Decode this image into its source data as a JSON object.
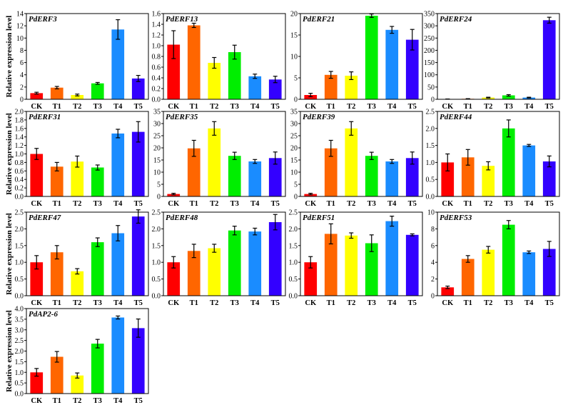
{
  "figure": {
    "ylabel": "Relative expression level",
    "categories": [
      "CK",
      "T1",
      "T2",
      "T3",
      "T4",
      "T5"
    ],
    "bar_colors": [
      "#ff0000",
      "#ff6600",
      "#ffff00",
      "#00ee00",
      "#1a8cff",
      "#3300ff"
    ]
  },
  "chart_data": [
    {
      "type": "bar",
      "title": "PdERF3",
      "categories": [
        "CK",
        "T1",
        "T2",
        "T3",
        "T4",
        "T5"
      ],
      "values": [
        1.0,
        1.9,
        0.7,
        2.6,
        11.4,
        3.4
      ],
      "errors": [
        0.15,
        0.2,
        0.15,
        0.15,
        1.6,
        0.5
      ],
      "ylim": [
        0,
        14
      ],
      "ticks": [
        0,
        2,
        4,
        6,
        8,
        10,
        12,
        14
      ],
      "tick_labels": [
        "0",
        "2",
        "4",
        "6",
        "8",
        "10",
        "12",
        "14"
      ],
      "ylabel": "Relative expression level"
    },
    {
      "type": "bar",
      "title": "PdERF13",
      "categories": [
        "CK",
        "T1",
        "T2",
        "T3",
        "T4",
        "T5"
      ],
      "values": [
        1.02,
        1.38,
        0.68,
        0.88,
        0.43,
        0.37
      ],
      "errors": [
        0.26,
        0.04,
        0.1,
        0.13,
        0.04,
        0.06
      ],
      "ylim": [
        0,
        1.6
      ],
      "ticks": [
        0,
        0.2,
        0.4,
        0.6,
        0.8,
        1.0,
        1.2,
        1.4,
        1.6
      ],
      "tick_labels": [
        "0.0",
        "0.2",
        "0.4",
        "0.6",
        "0.8",
        "1.0",
        "1.2",
        "1.4",
        "1.6"
      ],
      "ylabel": ""
    },
    {
      "type": "bar",
      "title": "PdERF21",
      "categories": [
        "CK",
        "T1",
        "T2",
        "T3",
        "T4",
        "T5"
      ],
      "values": [
        1.0,
        5.7,
        5.5,
        19.5,
        16.2,
        13.9
      ],
      "errors": [
        0.4,
        0.8,
        0.9,
        0.4,
        0.8,
        2.4
      ],
      "ylim": [
        0,
        20
      ],
      "ticks": [
        0,
        5,
        10,
        15,
        20
      ],
      "tick_labels": [
        "0",
        "5",
        "10",
        "15",
        "20"
      ],
      "ylabel": ""
    },
    {
      "type": "bar",
      "title": "PdERF24",
      "categories": [
        "CK",
        "T1",
        "T2",
        "T3",
        "T4",
        "T5"
      ],
      "values": [
        1,
        2,
        7,
        16,
        7,
        323
      ],
      "errors": [
        0.3,
        0.5,
        1.5,
        3,
        1.5,
        12
      ],
      "ylim": [
        0,
        350
      ],
      "ticks": [
        0,
        50,
        100,
        150,
        200,
        250,
        300,
        350
      ],
      "tick_labels": [
        "0",
        "50",
        "100",
        "150",
        "200",
        "250",
        "300",
        "350"
      ],
      "ylabel": ""
    },
    {
      "type": "bar",
      "title": "PdERF31",
      "categories": [
        "CK",
        "T1",
        "T2",
        "T3",
        "T4",
        "T5"
      ],
      "values": [
        1.0,
        0.7,
        0.82,
        0.68,
        1.48,
        1.52
      ],
      "errors": [
        0.13,
        0.1,
        0.13,
        0.06,
        0.1,
        0.24
      ],
      "ylim": [
        0,
        2.0
      ],
      "ticks": [
        0,
        0.2,
        0.4,
        0.6,
        0.8,
        1.0,
        1.2,
        1.4,
        1.6,
        1.8,
        2.0
      ],
      "tick_labels": [
        "0.0",
        "0.2",
        "0.4",
        "0.6",
        "0.8",
        "1.0",
        "1.2",
        "1.4",
        "1.6",
        "1.8",
        "2.0"
      ],
      "ylabel": "Relative expression level"
    },
    {
      "type": "bar",
      "title": "PdERF35",
      "categories": [
        "CK",
        "T1",
        "T2",
        "T3",
        "T4",
        "T5"
      ],
      "values": [
        1.0,
        19.8,
        28.0,
        16.7,
        14.4,
        15.8
      ],
      "errors": [
        0.3,
        3.3,
        2.8,
        1.5,
        0.8,
        2.5
      ],
      "ylim": [
        0,
        35
      ],
      "ticks": [
        0,
        5,
        10,
        15,
        20,
        25,
        30,
        35
      ],
      "tick_labels": [
        "0",
        "5",
        "10",
        "15",
        "20",
        "25",
        "30",
        "35"
      ],
      "ylabel": ""
    },
    {
      "type": "bar",
      "title": "PdERF39",
      "categories": [
        "CK",
        "T1",
        "T2",
        "T3",
        "T4",
        "T5"
      ],
      "values": [
        1.0,
        19.8,
        28.0,
        16.7,
        14.4,
        15.8
      ],
      "errors": [
        0.3,
        3.3,
        2.8,
        1.5,
        0.8,
        2.5
      ],
      "ylim": [
        0,
        35
      ],
      "ticks": [
        0,
        5,
        10,
        15,
        20,
        25,
        30,
        35
      ],
      "tick_labels": [
        "0",
        "5",
        "10",
        "15",
        "20",
        "25",
        "30",
        "35"
      ],
      "ylabel": ""
    },
    {
      "type": "bar",
      "title": "PdERF44",
      "categories": [
        "CK",
        "T1",
        "T2",
        "T3",
        "T4",
        "T5"
      ],
      "values": [
        1.0,
        1.15,
        0.9,
        2.0,
        1.5,
        1.03
      ],
      "errors": [
        0.25,
        0.23,
        0.12,
        0.25,
        0.03,
        0.16
      ],
      "ylim": [
        0,
        2.5
      ],
      "ticks": [
        0,
        0.5,
        1.0,
        1.5,
        2.0,
        2.5
      ],
      "tick_labels": [
        "0.0",
        "0.5",
        "1.0",
        "1.5",
        "2.0",
        "2.5"
      ],
      "ylabel": ""
    },
    {
      "type": "bar",
      "title": "PdERF47",
      "categories": [
        "CK",
        "T1",
        "T2",
        "T3",
        "T4",
        "T5"
      ],
      "values": [
        1.0,
        1.3,
        0.73,
        1.6,
        1.87,
        2.37
      ],
      "errors": [
        0.2,
        0.2,
        0.08,
        0.13,
        0.23,
        0.2
      ],
      "ylim": [
        0,
        2.5
      ],
      "ticks": [
        0,
        0.5,
        1.0,
        1.5,
        2.0,
        2.5
      ],
      "tick_labels": [
        "0.0",
        "0.5",
        "1.0",
        "1.5",
        "2.0",
        "2.5"
      ],
      "ylabel": "Relative expression level"
    },
    {
      "type": "bar",
      "title": "PdERF48",
      "categories": [
        "CK",
        "T1",
        "T2",
        "T3",
        "T4",
        "T5"
      ],
      "values": [
        1.0,
        1.34,
        1.42,
        1.95,
        1.92,
        2.2
      ],
      "errors": [
        0.17,
        0.2,
        0.12,
        0.13,
        0.1,
        0.23
      ],
      "ylim": [
        0,
        2.5
      ],
      "ticks": [
        0,
        0.5,
        1.0,
        1.5,
        2.0,
        2.5
      ],
      "tick_labels": [
        "0.0",
        "0.5",
        "1.0",
        "1.5",
        "2.0",
        "2.5"
      ],
      "ylabel": ""
    },
    {
      "type": "bar",
      "title": "PdERF51",
      "categories": [
        "CK",
        "T1",
        "T2",
        "T3",
        "T4",
        "T5"
      ],
      "values": [
        1.0,
        1.85,
        1.8,
        1.57,
        2.23,
        1.82
      ],
      "errors": [
        0.17,
        0.3,
        0.08,
        0.25,
        0.15,
        0.03
      ],
      "ylim": [
        0,
        2.5
      ],
      "ticks": [
        0,
        0.5,
        1.0,
        1.5,
        2.0,
        2.5
      ],
      "tick_labels": [
        "0.0",
        "0.5",
        "1.0",
        "1.5",
        "2.0",
        "2.5"
      ],
      "ylabel": ""
    },
    {
      "type": "bar",
      "title": "PdERF53",
      "categories": [
        "CK",
        "T1",
        "T2",
        "T3",
        "T4",
        "T5"
      ],
      "values": [
        1.0,
        4.4,
        5.5,
        8.5,
        5.2,
        5.6
      ],
      "errors": [
        0.15,
        0.4,
        0.4,
        0.5,
        0.15,
        0.9
      ],
      "ylim": [
        0,
        10
      ],
      "ticks": [
        0,
        2,
        4,
        6,
        8,
        10
      ],
      "tick_labels": [
        "0",
        "2",
        "4",
        "6",
        "8",
        "10"
      ],
      "ylabel": ""
    },
    {
      "type": "bar",
      "title": "PdAP2-6",
      "categories": [
        "CK",
        "T1",
        "T2",
        "T3",
        "T4",
        "T5"
      ],
      "values": [
        1.0,
        1.73,
        0.85,
        2.35,
        3.58,
        3.08
      ],
      "errors": [
        0.18,
        0.25,
        0.12,
        0.2,
        0.07,
        0.43
      ],
      "ylim": [
        0,
        4.0
      ],
      "ticks": [
        0,
        0.5,
        1.0,
        1.5,
        2.0,
        2.5,
        3.0,
        3.5,
        4.0
      ],
      "tick_labels": [
        "0.0",
        "0.5",
        "1.0",
        "1.5",
        "2.0",
        "2.5",
        "3.0",
        "3.5",
        "4.0"
      ],
      "ylabel": "Relative expression level"
    }
  ]
}
